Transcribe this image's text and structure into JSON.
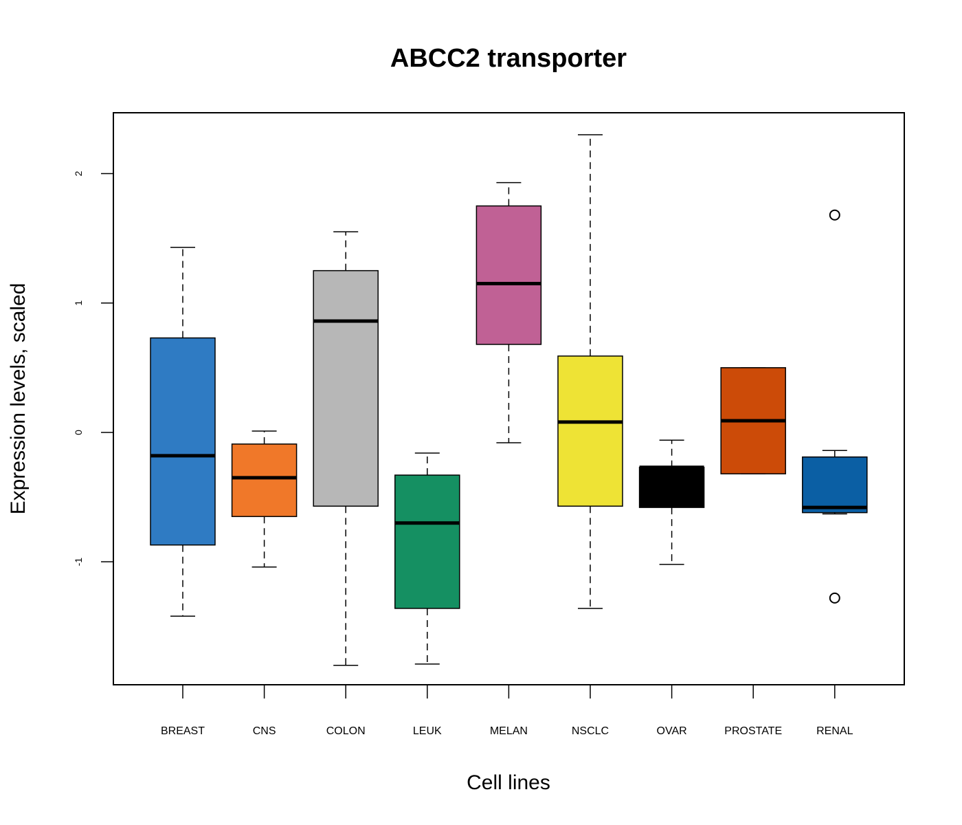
{
  "chart_data": {
    "type": "boxplot",
    "title": "ABCC2 transporter",
    "xlabel": "Cell lines",
    "ylabel": "Expression levels, scaled",
    "ylim": [
      -1.95,
      2.47
    ],
    "yticks": [
      -1,
      0,
      1,
      2
    ],
    "grid": false,
    "legend": "none",
    "categories": [
      "BREAST",
      "CNS",
      "COLON",
      "LEUK",
      "MELAN",
      "NSCLC",
      "OVAR",
      "PROSTATE",
      "RENAL"
    ],
    "boxes": [
      {
        "whisker_low": -1.42,
        "q1": -0.87,
        "median": -0.18,
        "q3": 0.73,
        "whisker_high": 1.43,
        "outliers": [],
        "color": "#2f7bc3"
      },
      {
        "whisker_low": -1.04,
        "q1": -0.65,
        "median": -0.35,
        "q3": -0.09,
        "whisker_high": 0.01,
        "outliers": [],
        "color": "#f07829"
      },
      {
        "whisker_low": -1.8,
        "q1": -0.57,
        "median": 0.86,
        "q3": 1.25,
        "whisker_high": 1.55,
        "outliers": [],
        "color": "#b7b7b7"
      },
      {
        "whisker_low": -1.79,
        "q1": -1.36,
        "median": -0.7,
        "q3": -0.33,
        "whisker_high": -0.16,
        "outliers": [],
        "color": "#159062"
      },
      {
        "whisker_low": -0.08,
        "q1": 0.68,
        "median": 1.15,
        "q3": 1.75,
        "whisker_high": 1.93,
        "outliers": [],
        "color": "#c06195"
      },
      {
        "whisker_low": -1.36,
        "q1": -0.57,
        "median": 0.08,
        "q3": 0.59,
        "whisker_high": 2.3,
        "outliers": [],
        "color": "#eee335"
      },
      {
        "whisker_low": -1.02,
        "q1": -0.58,
        "median": -0.27,
        "q3": -0.27,
        "whisker_high": -0.06,
        "outliers": [],
        "color": "#000000"
      },
      {
        "whisker_low": -0.32,
        "q1": -0.32,
        "median": 0.09,
        "q3": 0.5,
        "whisker_high": 0.5,
        "outliers": [],
        "color": "#cc4b08"
      },
      {
        "whisker_low": -0.63,
        "q1": -0.62,
        "median": -0.58,
        "q3": -0.19,
        "whisker_high": -0.14,
        "outliers": [
          1.68,
          -1.28
        ],
        "color": "#0b5fa4"
      }
    ]
  }
}
